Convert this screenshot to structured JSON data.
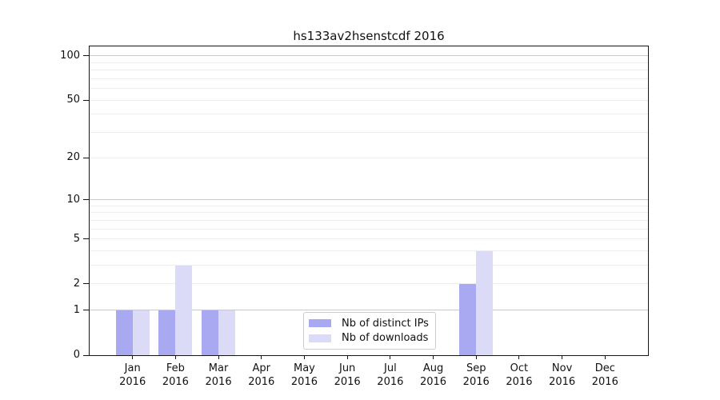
{
  "title": "hs133av2hsenstcdf 2016",
  "chart_data": {
    "type": "bar",
    "title": "hs133av2hsenstcdf 2016",
    "categories": [
      "Jan 2016",
      "Feb 2016",
      "Mar 2016",
      "Apr 2016",
      "May 2016",
      "Jun 2016",
      "Jul 2016",
      "Aug 2016",
      "Sep 2016",
      "Oct 2016",
      "Nov 2016",
      "Dec 2016"
    ],
    "series": [
      {
        "name": "Nb of distinct IPs",
        "color": "#a9a9f2",
        "values": [
          1,
          1,
          1,
          0,
          0,
          0,
          0,
          0,
          2,
          0,
          0,
          0
        ]
      },
      {
        "name": "Nb of downloads",
        "color": "#dbdbf8",
        "values": [
          1,
          3,
          1,
          0,
          0,
          0,
          0,
          0,
          4,
          0,
          0,
          0
        ]
      }
    ],
    "xlabel": "",
    "ylabel": "",
    "y_scale": "log10(1+y)",
    "ylim": [
      0,
      116
    ],
    "y_tick_values": [
      0,
      1,
      2,
      5,
      10,
      20,
      50,
      100
    ],
    "y_major_gridlines": [
      1,
      10,
      100
    ],
    "y_minor_gridlines": [
      2,
      3,
      4,
      5,
      6,
      7,
      8,
      9,
      20,
      30,
      40,
      50,
      60,
      70,
      80,
      90
    ],
    "grid": true,
    "legend_position": "bottom-center-inside"
  },
  "colors": {
    "bar_distinct_ips": "#a9a9f2",
    "bar_downloads": "#dbdbf8",
    "major_gridline": "#c9c9c9",
    "minor_gridline": "#ececec",
    "axis": "#141414",
    "background": "#ffffff"
  }
}
